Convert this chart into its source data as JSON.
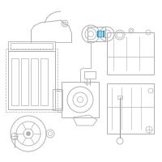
{
  "background_color": "#ffffff",
  "line_color": "#b0b0b0",
  "dark_line": "#909090",
  "highlight_fill": "#4ab8d8",
  "highlight_edge": "#2a90b8",
  "fig_width": 2.0,
  "fig_height": 2.0,
  "dpi": 100
}
